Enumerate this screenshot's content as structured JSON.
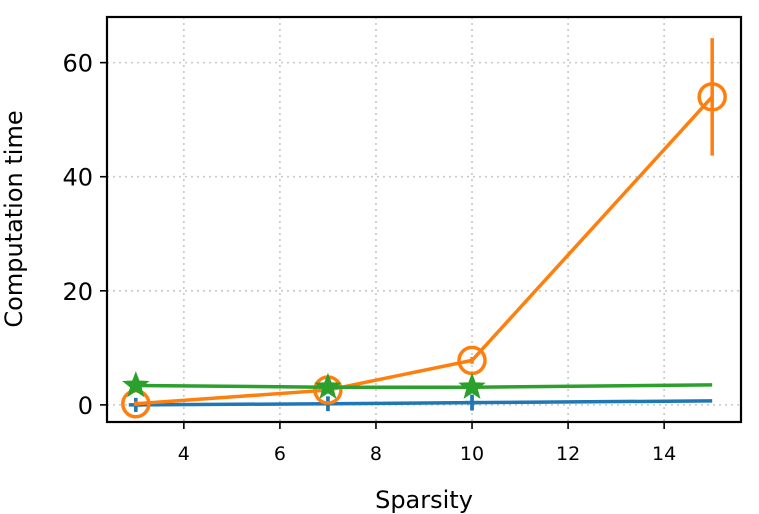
{
  "chart_data": {
    "type": "line",
    "title": "",
    "xlabel": "Sparsity",
    "ylabel": "Computation time",
    "xlim": [
      2.4,
      15.6
    ],
    "ylim": [
      -3,
      68
    ],
    "xticks": [
      "4",
      "6",
      "8",
      "10",
      "12",
      "14"
    ],
    "yticks": [
      "0",
      "20",
      "40",
      "60"
    ],
    "grid": true,
    "series": [
      {
        "color": "#1f77b4",
        "marker": "plus",
        "x": [
          3,
          7,
          10,
          15
        ],
        "y": [
          0.0,
          0.2,
          0.4,
          0.7
        ],
        "yerr": [
          1.2,
          1.3,
          1.4,
          0.0
        ]
      },
      {
        "color": "#ff7f0e",
        "marker": "circle",
        "x": [
          3,
          7,
          10,
          15
        ],
        "y": [
          0.2,
          2.6,
          7.8,
          54.0
        ],
        "yerr": [
          0.4,
          0.4,
          0.6,
          10.3
        ]
      },
      {
        "color": "#2ca02c",
        "marker": "star",
        "x": [
          3,
          7,
          10,
          15
        ],
        "y": [
          3.4,
          3.1,
          3.1,
          3.5
        ],
        "yerr": [
          0.0,
          0.0,
          0.0,
          0.0
        ]
      }
    ]
  }
}
